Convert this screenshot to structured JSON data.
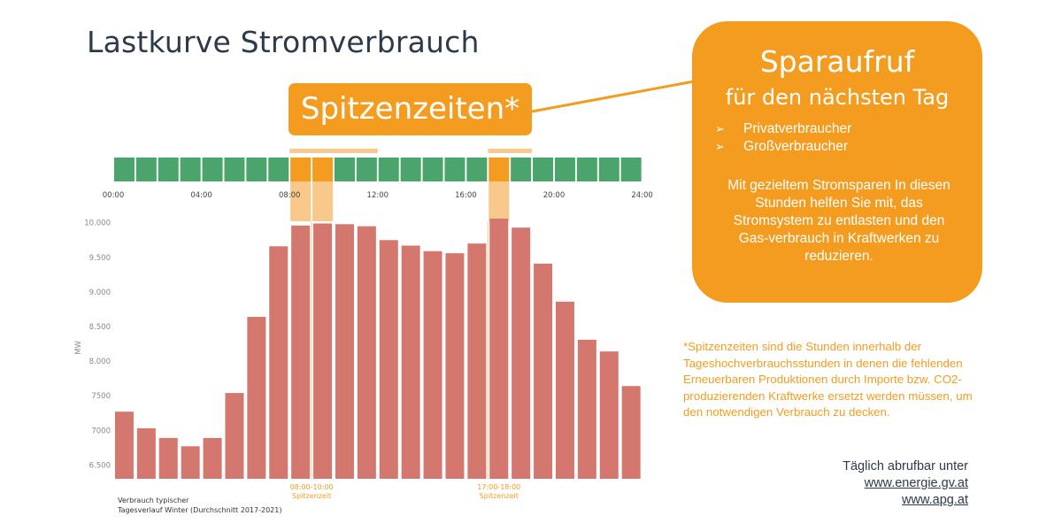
{
  "title": "Lastkurve Stromverbrauch",
  "peak_box": "Spitzenzeiten*",
  "callout": {
    "title": "Sparaufruf",
    "subtitle": "für den nächsten Tag",
    "list": [
      "Privatverbraucher",
      "Großverbraucher"
    ],
    "bullet_icon": "arrow-bullet-icon",
    "body": "Mit gezieltem Stromsparen In diesen Stunden helfen Sie mit, das Stromsystem zu entlasten und den Gas-verbrauch in Kraftwerken zu reduzieren."
  },
  "footnote": "*Spitzenzeiten sind die Stunden innerhalb der Tageshochverbrauchsstunden in denen die fehlenden Erneuerbaren Produktionen durch Importe bzw. CO2-produzierenden Kraftwerke ersetzt werden müssen, um den notwendigen Verbrauch zu decken.",
  "links": {
    "intro": "Täglich abrufbar unter",
    "items": [
      "www.energie.gv.at",
      "www.apg.at"
    ]
  },
  "colors": {
    "accent": "#f39c1f",
    "bar": "#d4776f",
    "hour_ok": "#4aa46b",
    "hour_peak": "#f39c1f",
    "highlight": "#f8c98a",
    "title_text": "#2d3a4a"
  },
  "chart_data": {
    "type": "bar",
    "ylabel": "MW",
    "ylim": [
      6300,
      10150
    ],
    "yticks": [
      6500,
      7000,
      7500,
      8000,
      8500,
      9000,
      9500,
      10000
    ],
    "ytick_labels": [
      "6.500",
      "7000",
      "7500",
      "8.000",
      "8.500",
      "9.000",
      "9.500",
      "10.000"
    ],
    "hours": [
      0,
      1,
      2,
      3,
      4,
      5,
      6,
      7,
      8,
      9,
      10,
      11,
      12,
      13,
      14,
      15,
      16,
      17,
      18,
      19,
      20,
      21,
      22,
      23
    ],
    "values": [
      7270,
      7030,
      6890,
      6770,
      6890,
      7540,
      8640,
      9660,
      9960,
      9990,
      9980,
      9950,
      9750,
      9670,
      9590,
      9560,
      9700,
      10060,
      9930,
      9410,
      8860,
      8310,
      8140,
      7640
    ],
    "xtick_labels": [
      "00:00",
      "04:00",
      "08:00",
      "12:00",
      "16:00",
      "20:00",
      "24:00"
    ],
    "xtick_hours": [
      0,
      4,
      8,
      12,
      16,
      20,
      24
    ],
    "peak_hours": [
      8,
      9,
      17
    ],
    "peak_ranges": [
      {
        "range": "08:00-10:00",
        "label": "Spitzenzeit"
      },
      {
        "range": "17:00-18:00",
        "label": "Spitzenzeit"
      }
    ],
    "caption": [
      "Verbrauch typischer",
      "Tagesverlauf Winter (Durchschnitt 2017-2021)"
    ],
    "grid": false
  }
}
